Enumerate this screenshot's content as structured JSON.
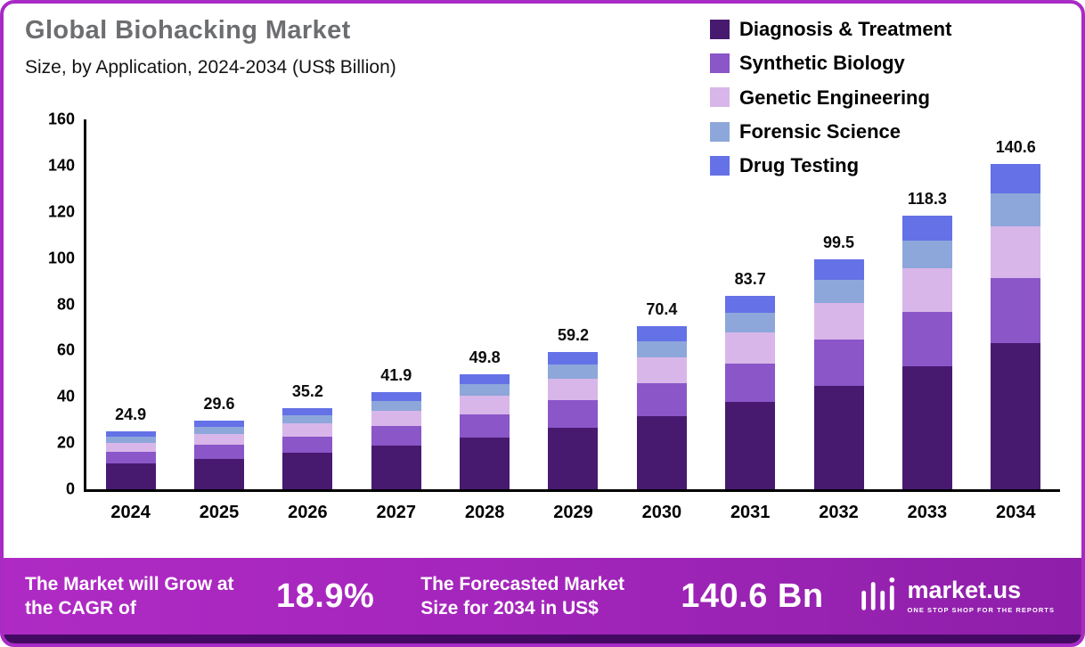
{
  "title": "Global Biohacking Market",
  "subtitle": "Size, by Application, 2024-2034 (US$ Billion)",
  "colors": {
    "frame_border": "#A82BC5",
    "banner_gradient_start": "#AF2AC4",
    "banner_gradient_end": "#8E1FA9",
    "banner_bottom_strip": "#440A63",
    "title_text": "#6D6E71"
  },
  "chart_data": {
    "type": "bar",
    "stacked": true,
    "title": "Global Biohacking Market Size, by Application, 2024-2034 (US$ Billion)",
    "xlabel": "",
    "ylabel": "US$ Billion",
    "ylim": [
      0,
      160
    ],
    "yticks": [
      0,
      20,
      40,
      60,
      80,
      100,
      120,
      140,
      160
    ],
    "grid": false,
    "legend_position": "top-right",
    "categories": [
      "2024",
      "2025",
      "2026",
      "2027",
      "2028",
      "2029",
      "2030",
      "2031",
      "2032",
      "2033",
      "2034"
    ],
    "totals": [
      24.9,
      29.6,
      35.2,
      41.9,
      49.8,
      59.2,
      70.4,
      83.7,
      99.5,
      118.3,
      140.6
    ],
    "series": [
      {
        "name": "Diagnosis & Treatment",
        "color": "#471A70",
        "values": [
          11.2,
          13.3,
          15.8,
          18.9,
          22.4,
          26.6,
          31.7,
          37.7,
          44.8,
          53.2,
          63.3
        ]
      },
      {
        "name": "Synthetic Biology",
        "color": "#8A56C8",
        "values": [
          5.0,
          5.9,
          7.0,
          8.4,
          10.0,
          11.8,
          14.1,
          16.7,
          19.9,
          23.7,
          28.1
        ]
      },
      {
        "name": "Genetic Engineering",
        "color": "#D9B6E9",
        "values": [
          4.0,
          4.7,
          5.6,
          6.7,
          8.0,
          9.5,
          11.3,
          13.4,
          15.9,
          18.9,
          22.5
        ]
      },
      {
        "name": "Forensic Science",
        "color": "#8DA7DA",
        "values": [
          2.5,
          3.0,
          3.5,
          4.2,
          5.0,
          5.9,
          7.0,
          8.4,
          10.0,
          11.8,
          14.1
        ]
      },
      {
        "name": "Drug Testing",
        "color": "#6571E6",
        "values": [
          2.2,
          2.7,
          3.3,
          3.7,
          4.4,
          5.4,
          6.3,
          7.5,
          8.9,
          10.7,
          12.6
        ]
      }
    ]
  },
  "footer": {
    "cagr_label": "The Market will Grow at the CAGR of",
    "cagr_value": "18.9%",
    "forecast_label": "The Forecasted Market Size for 2034 in US$",
    "forecast_value": "140.6 Bn",
    "brand_name": "market.us",
    "brand_tagline": "ONE STOP SHOP FOR THE REPORTS"
  }
}
